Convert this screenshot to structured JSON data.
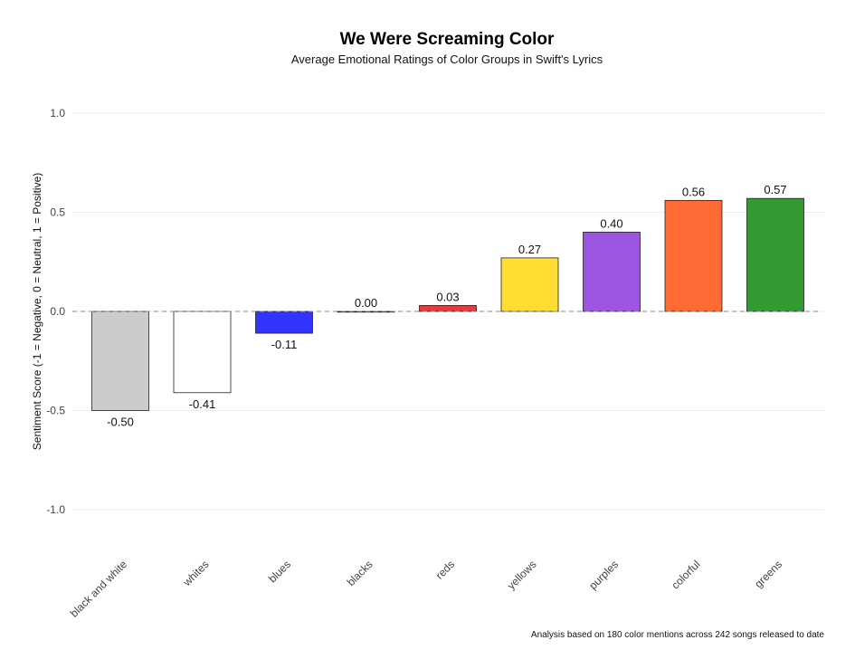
{
  "chart_data": {
    "type": "bar",
    "title": "We Were Screaming Color",
    "subtitle": "Average Emotional Ratings of Color Groups in Swift's Lyrics",
    "xlabel": "",
    "ylabel": "Sentiment Score (-1 = Negative, 0 = Neutral, 1 = Positive)",
    "categories": [
      "black and white",
      "whites",
      "blues",
      "blacks",
      "reds",
      "yellows",
      "purples",
      "colorful",
      "greens"
    ],
    "values": [
      -0.5,
      -0.41,
      -0.11,
      0.0,
      0.03,
      0.27,
      0.4,
      0.56,
      0.57
    ],
    "value_labels": [
      "-0.50",
      "-0.41",
      "-0.11",
      "0.00",
      "0.03",
      "0.27",
      "0.40",
      "0.56",
      "0.57"
    ],
    "colors": [
      "#CCCCCC",
      "#FFFFFF",
      "#3333FF",
      "#111111",
      "#E83A3A",
      "#FFDD33",
      "#9B55E0",
      "#FF6B33",
      "#339933"
    ],
    "ylim": [
      -1.0,
      1.0
    ],
    "yticks": [
      1.0,
      0.5,
      0.0,
      -0.5,
      -1.0
    ],
    "ytick_labels": [
      "1.0",
      "0.5",
      "0.0",
      "-0.5",
      "-1.0"
    ],
    "reference_line": 0,
    "grid": true,
    "caption": "Analysis based on 180 color mentions across 242 songs released to date"
  }
}
